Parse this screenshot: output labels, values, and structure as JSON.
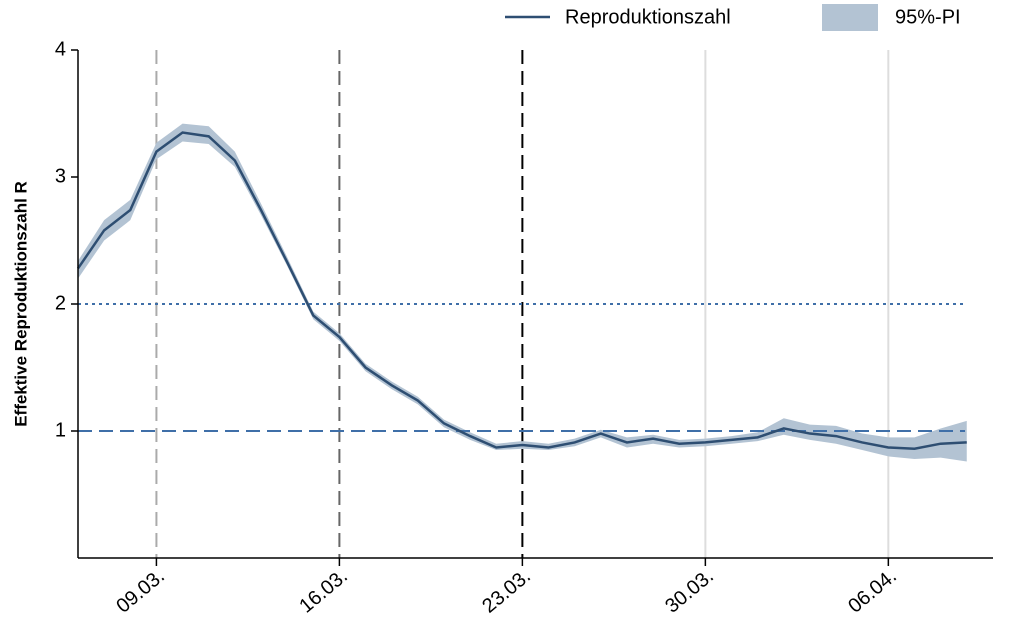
{
  "chart_data": {
    "type": "line",
    "ylabel": "Effektive Reproduktionszahl R",
    "categories": [
      null,
      null,
      null,
      "09.03.",
      null,
      null,
      null,
      null,
      null,
      null,
      "16.03.",
      null,
      null,
      null,
      null,
      null,
      null,
      "23.03.",
      null,
      null,
      null,
      null,
      null,
      null,
      "30.03.",
      null,
      null,
      null,
      null,
      null,
      null,
      "06.04.",
      null,
      null,
      null
    ],
    "series": [
      {
        "name": "Reproduktionszahl",
        "color": "#2e4e72",
        "values": [
          2.28,
          2.58,
          2.74,
          3.2,
          3.35,
          3.32,
          3.13,
          2.74,
          2.33,
          1.91,
          1.74,
          1.5,
          1.36,
          1.24,
          1.06,
          0.96,
          0.87,
          0.89,
          0.87,
          0.91,
          0.98,
          0.91,
          0.94,
          0.9,
          0.91,
          0.93,
          0.95,
          1.02,
          0.98,
          0.96,
          0.91,
          0.87,
          0.86,
          0.9,
          0.91
        ]
      },
      {
        "name": "95%-PI",
        "color": "#b3c3d3",
        "lower": [
          2.2,
          2.5,
          2.66,
          3.14,
          3.28,
          3.26,
          3.08,
          2.7,
          2.3,
          1.88,
          1.71,
          1.47,
          1.33,
          1.21,
          1.03,
          0.93,
          0.85,
          0.86,
          0.85,
          0.88,
          0.95,
          0.87,
          0.9,
          0.87,
          0.88,
          0.9,
          0.92,
          0.97,
          0.93,
          0.9,
          0.85,
          0.8,
          0.78,
          0.79,
          0.76
        ],
        "upper": [
          2.34,
          2.66,
          2.82,
          3.27,
          3.42,
          3.4,
          3.2,
          2.79,
          2.37,
          1.94,
          1.77,
          1.53,
          1.39,
          1.27,
          1.09,
          0.99,
          0.9,
          0.92,
          0.9,
          0.94,
          1.01,
          0.95,
          0.97,
          0.93,
          0.94,
          0.96,
          0.99,
          1.1,
          1.05,
          1.04,
          0.98,
          0.95,
          0.95,
          1.02,
          1.08
        ]
      }
    ],
    "ylim": [
      0,
      4
    ],
    "yticks": [
      1,
      2,
      3,
      4
    ],
    "reference_lines": [
      {
        "value": 2,
        "style": "dotted",
        "color": "#3f6fa8"
      },
      {
        "value": 1,
        "style": "dashed",
        "color": "#3f6fa8"
      }
    ],
    "vertical_lines": [
      {
        "at": "09.03.",
        "style": "dashed",
        "color": "#aaaaaa"
      },
      {
        "at": "16.03.",
        "style": "dashed",
        "color": "#666666"
      },
      {
        "at": "23.03.",
        "style": "dashed",
        "color": "#000000"
      },
      {
        "at": "30.03.",
        "style": "solid",
        "color": "#dddddd"
      },
      {
        "at": "06.04.",
        "style": "solid",
        "color": "#dddddd"
      }
    ],
    "legend": "top-right"
  }
}
